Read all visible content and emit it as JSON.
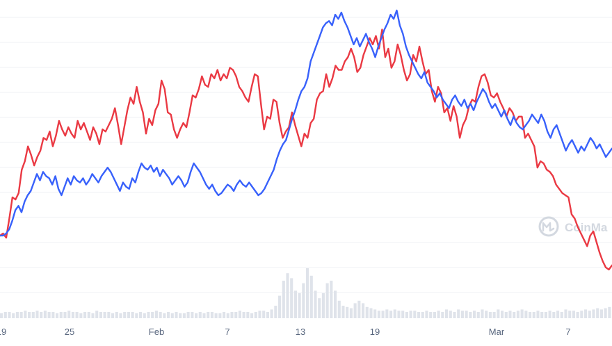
{
  "chart_data": {
    "type": "line",
    "watermark": "CoinMa",
    "x_ticks": [
      "19",
      "25",
      "Feb",
      "7",
      "13",
      "19",
      "Mar",
      "7"
    ],
    "grid": true,
    "colors": {
      "series_a": "#ea3943",
      "series_b": "#3861fb",
      "volume": "#dfe3ea",
      "grid": "#eff2f5",
      "axis_text": "#58667e"
    },
    "series": [
      {
        "color": "#ea3943",
        "values": [
          0.2,
          0.21,
          0.19,
          0.28,
          0.38,
          0.37,
          0.4,
          0.51,
          0.55,
          0.62,
          0.58,
          0.53,
          0.57,
          0.6,
          0.66,
          0.65,
          0.69,
          0.62,
          0.67,
          0.74,
          0.7,
          0.67,
          0.71,
          0.68,
          0.66,
          0.74,
          0.7,
          0.73,
          0.69,
          0.65,
          0.71,
          0.68,
          0.63,
          0.7,
          0.69,
          0.72,
          0.75,
          0.8,
          0.72,
          0.63,
          0.71,
          0.79,
          0.85,
          0.82,
          0.9,
          0.83,
          0.78,
          0.68,
          0.75,
          0.72,
          0.79,
          0.82,
          0.93,
          0.89,
          0.78,
          0.77,
          0.7,
          0.66,
          0.7,
          0.73,
          0.71,
          0.78,
          0.86,
          0.85,
          0.89,
          0.95,
          0.91,
          0.9,
          0.96,
          0.94,
          0.98,
          0.93,
          0.96,
          0.94,
          0.99,
          0.98,
          0.95,
          0.9,
          0.88,
          0.85,
          0.83,
          0.9,
          0.96,
          0.95,
          0.82,
          0.7,
          0.76,
          0.75,
          0.84,
          0.83,
          0.73,
          0.66,
          0.69,
          0.71,
          0.78,
          0.72,
          0.67,
          0.62,
          0.68,
          0.66,
          0.73,
          0.75,
          0.84,
          0.87,
          0.88,
          0.96,
          0.9,
          0.94,
          1.0,
          0.98,
          0.98,
          1.02,
          1.04,
          1.08,
          1.04,
          0.97,
          0.99,
          1.05,
          1.09,
          1.13,
          1.1,
          1.14,
          1.08,
          1.17,
          1.04,
          1.08,
          0.99,
          1.02,
          1.1,
          1.05,
          0.98,
          0.93,
          0.96,
          1.05,
          1.02,
          1.09,
          1.02,
          0.96,
          0.98,
          0.88,
          0.83,
          0.9,
          0.87,
          0.78,
          0.8,
          0.74,
          0.81,
          0.76,
          0.66,
          0.72,
          0.75,
          0.81,
          0.84,
          0.83,
          0.9,
          0.95,
          0.96,
          0.92,
          0.86,
          0.85,
          0.87,
          0.83,
          0.8,
          0.76,
          0.8,
          0.78,
          0.74,
          0.76,
          0.76,
          0.66,
          0.68,
          0.65,
          0.62,
          0.52,
          0.55,
          0.54,
          0.51,
          0.5,
          0.48,
          0.44,
          0.42,
          0.4,
          0.39,
          0.38,
          0.3,
          0.28,
          0.24,
          0.21,
          0.18,
          0.15,
          0.2,
          0.22,
          0.17,
          0.12,
          0.08,
          0.05,
          0.04,
          0.06
        ]
      },
      {
        "color": "#3861fb",
        "values": [
          0.2,
          0.2,
          0.21,
          0.23,
          0.27,
          0.32,
          0.34,
          0.31,
          0.36,
          0.39,
          0.41,
          0.45,
          0.49,
          0.46,
          0.5,
          0.48,
          0.47,
          0.44,
          0.48,
          0.42,
          0.39,
          0.43,
          0.47,
          0.44,
          0.48,
          0.46,
          0.45,
          0.47,
          0.44,
          0.46,
          0.49,
          0.47,
          0.45,
          0.48,
          0.5,
          0.52,
          0.5,
          0.47,
          0.44,
          0.41,
          0.45,
          0.43,
          0.42,
          0.47,
          0.45,
          0.5,
          0.54,
          0.52,
          0.51,
          0.53,
          0.5,
          0.52,
          0.48,
          0.51,
          0.49,
          0.47,
          0.44,
          0.46,
          0.48,
          0.46,
          0.43,
          0.45,
          0.5,
          0.54,
          0.52,
          0.5,
          0.47,
          0.44,
          0.42,
          0.44,
          0.41,
          0.39,
          0.4,
          0.42,
          0.44,
          0.43,
          0.41,
          0.44,
          0.46,
          0.44,
          0.43,
          0.45,
          0.43,
          0.41,
          0.39,
          0.4,
          0.42,
          0.45,
          0.48,
          0.51,
          0.56,
          0.6,
          0.63,
          0.65,
          0.7,
          0.75,
          0.79,
          0.84,
          0.88,
          0.9,
          0.94,
          1.02,
          1.06,
          1.1,
          1.14,
          1.18,
          1.2,
          1.21,
          1.19,
          1.24,
          1.22,
          1.25,
          1.21,
          1.18,
          1.14,
          1.1,
          1.13,
          1.09,
          1.12,
          1.15,
          1.11,
          1.08,
          1.04,
          1.09,
          1.13,
          1.17,
          1.2,
          1.24,
          1.22,
          1.26,
          1.19,
          1.15,
          1.09,
          1.05,
          1.02,
          0.99,
          0.96,
          0.94,
          0.97,
          0.92,
          0.9,
          0.88,
          0.85,
          0.87,
          0.84,
          0.82,
          0.8,
          0.84,
          0.86,
          0.83,
          0.81,
          0.84,
          0.8,
          0.82,
          0.79,
          0.83,
          0.86,
          0.89,
          0.87,
          0.83,
          0.8,
          0.82,
          0.79,
          0.76,
          0.79,
          0.75,
          0.72,
          0.76,
          0.73,
          0.71,
          0.7,
          0.72,
          0.74,
          0.77,
          0.75,
          0.73,
          0.77,
          0.74,
          0.69,
          0.66,
          0.7,
          0.72,
          0.68,
          0.64,
          0.6,
          0.63,
          0.65,
          0.62,
          0.59,
          0.62,
          0.6,
          0.63,
          0.66,
          0.64,
          0.61,
          0.63,
          0.6,
          0.57,
          0.59,
          0.61
        ]
      }
    ],
    "volume": [
      0.04,
      0.05,
      0.05,
      0.04,
      0.05,
      0.05,
      0.06,
      0.05,
      0.05,
      0.06,
      0.05,
      0.06,
      0.05,
      0.05,
      0.04,
      0.05,
      0.05,
      0.06,
      0.05,
      0.05,
      0.04,
      0.05,
      0.05,
      0.04,
      0.06,
      0.05,
      0.05,
      0.05,
      0.04,
      0.05,
      0.04,
      0.05,
      0.05,
      0.05,
      0.04,
      0.05,
      0.04,
      0.05,
      0.05,
      0.06,
      0.05,
      0.04,
      0.05,
      0.04,
      0.05,
      0.04,
      0.04,
      0.05,
      0.05,
      0.04,
      0.05,
      0.04,
      0.05,
      0.05,
      0.04,
      0.04,
      0.05,
      0.04,
      0.05,
      0.05,
      0.06,
      0.05,
      0.05,
      0.04,
      0.05,
      0.06,
      0.06,
      0.05,
      0.07,
      0.1,
      0.18,
      0.3,
      0.36,
      0.32,
      0.22,
      0.2,
      0.28,
      0.4,
      0.34,
      0.22,
      0.16,
      0.2,
      0.28,
      0.3,
      0.22,
      0.14,
      0.1,
      0.09,
      0.08,
      0.12,
      0.14,
      0.12,
      0.09,
      0.08,
      0.07,
      0.06,
      0.06,
      0.07,
      0.06,
      0.07,
      0.06,
      0.06,
      0.05,
      0.06,
      0.06,
      0.05,
      0.05,
      0.06,
      0.05,
      0.05,
      0.06,
      0.05,
      0.07,
      0.06,
      0.05,
      0.07,
      0.06,
      0.06,
      0.05,
      0.06,
      0.05,
      0.07,
      0.06,
      0.05,
      0.05,
      0.07,
      0.06,
      0.05,
      0.06,
      0.05,
      0.06,
      0.07,
      0.06,
      0.05,
      0.05,
      0.06,
      0.05,
      0.05,
      0.06,
      0.05,
      0.06,
      0.05,
      0.07,
      0.06,
      0.06,
      0.05,
      0.06,
      0.07,
      0.06,
      0.07,
      0.08,
      0.07,
      0.08,
      0.09
    ]
  }
}
